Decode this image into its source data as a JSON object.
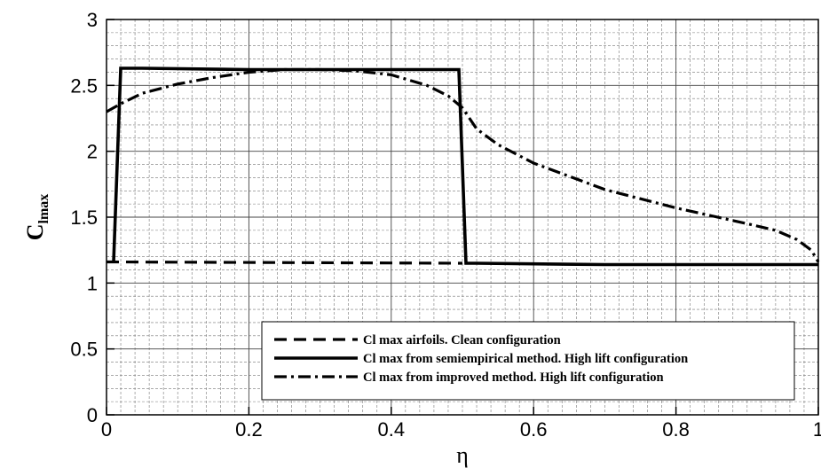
{
  "chart_data": {
    "type": "line",
    "xlabel": "η",
    "ylabel_main": "C",
    "ylabel_sub": "lmax",
    "xlim": [
      0,
      1
    ],
    "ylim": [
      0,
      3
    ],
    "x_ticks": [
      0,
      0.2,
      0.4,
      0.6,
      0.8,
      1
    ],
    "x_tick_labels": [
      "0",
      "0.2",
      "0.4",
      "0.6",
      "0.8",
      "1"
    ],
    "y_ticks": [
      0,
      0.5,
      1,
      1.5,
      2,
      2.5,
      3
    ],
    "y_tick_labels": [
      "0",
      "0.5",
      "1",
      "1.5",
      "2",
      "2.5",
      "3"
    ],
    "grid": true,
    "legend_position": "bottom-right",
    "series": [
      {
        "name": "Cl max airfoils. Clean configuration",
        "style": "dashed",
        "x": [
          0,
          0.5
        ],
        "y": [
          1.16,
          1.15
        ]
      },
      {
        "name": "Cl max from semiempirical method. High lift configuration",
        "style": "solid",
        "x": [
          0.01,
          0.01,
          0.02,
          0.05,
          0.2,
          0.4,
          0.495,
          0.505,
          0.52,
          0.7,
          1.0
        ],
        "y": [
          1.15,
          1.16,
          2.63,
          2.63,
          2.62,
          2.62,
          2.62,
          1.15,
          1.15,
          1.14,
          1.14
        ]
      },
      {
        "name": "Cl max from improved method. High lift configuration",
        "style": "dashdot",
        "x": [
          0,
          0.02,
          0.05,
          0.1,
          0.15,
          0.2,
          0.25,
          0.3,
          0.35,
          0.4,
          0.45,
          0.48,
          0.5,
          0.52,
          0.55,
          0.6,
          0.65,
          0.7,
          0.75,
          0.8,
          0.85,
          0.9,
          0.94,
          0.97,
          0.99,
          1.0
        ],
        "y": [
          2.3,
          2.36,
          2.44,
          2.51,
          2.56,
          2.6,
          2.62,
          2.62,
          2.61,
          2.58,
          2.5,
          2.42,
          2.33,
          2.17,
          2.05,
          1.91,
          1.81,
          1.71,
          1.64,
          1.57,
          1.51,
          1.45,
          1.4,
          1.33,
          1.25,
          1.16
        ]
      }
    ]
  }
}
